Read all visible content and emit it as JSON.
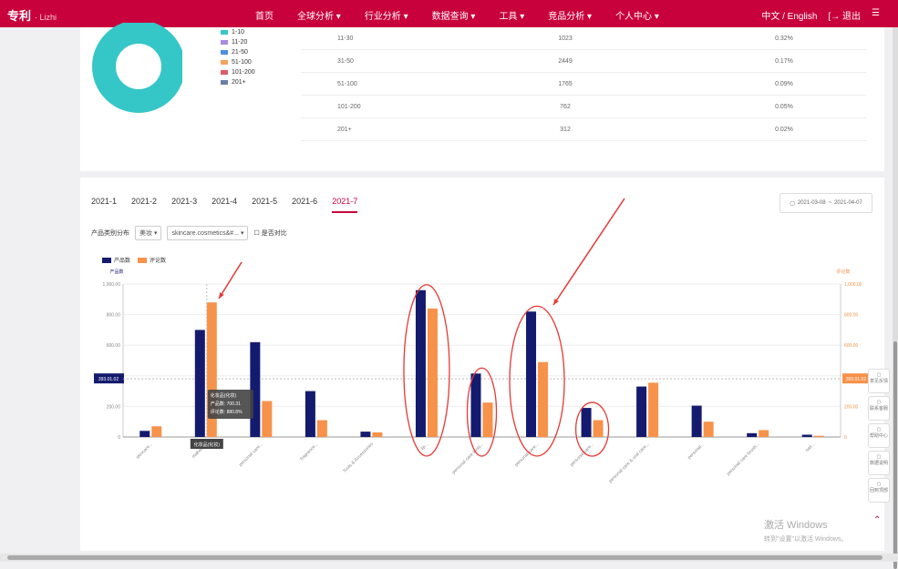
{
  "topbar": {
    "logo": "专利",
    "logo_sub": "· Lizhi",
    "nav": [
      "首页",
      "全球分析 ▾",
      "行业分析 ▾",
      "数据查询 ▾",
      "工具 ▾",
      "竞品分析 ▾",
      "个人中心 ▾"
    ],
    "lang": "中文 / English",
    "logout": "[→ 退出",
    "menu_icon": "menu-icon"
  },
  "range_legend": [
    {
      "label": "1-10",
      "color": "#35c6c8"
    },
    {
      "label": "11-20",
      "color": "#a98be0"
    },
    {
      "label": "21-50",
      "color": "#4a90e2"
    },
    {
      "label": "51-100",
      "color": "#f5a25d"
    },
    {
      "label": "101-200",
      "color": "#e05a6a"
    },
    {
      "label": "201+",
      "color": "#6a7fa8"
    }
  ],
  "range_table": [
    {
      "range": "11-30",
      "count": "1023",
      "pct": "0.32%"
    },
    {
      "range": "31-50",
      "count": "2449",
      "pct": "0.17%"
    },
    {
      "range": "51-100",
      "count": "1765",
      "pct": "0.09%"
    },
    {
      "range": "101-200",
      "count": "762",
      "pct": "0.05%"
    },
    {
      "range": "201+",
      "count": "312",
      "pct": "0.02%"
    }
  ],
  "tabs": [
    "2021-1",
    "2021-2",
    "2021-3",
    "2021-4",
    "2021-5",
    "2021-6",
    "2021-7"
  ],
  "active_tab": "2021-7",
  "date_range": {
    "start": "2021-03-08",
    "sep": "~",
    "end": "2021-04-07"
  },
  "filters": {
    "label": "产品类别分布",
    "select1": "美妆",
    "select2": "skincare.cosmetics&#...",
    "checkbox": "是否对比"
  },
  "chart_data": {
    "type": "bar",
    "legend": [
      "产品数",
      "评论数"
    ],
    "colors": {
      "产品数": "#141b6e",
      "评论数": "#f7924a"
    },
    "ylabel_left": "产品数",
    "ylabel_right": "评论数",
    "yticks_left": [
      "1,000.00",
      "800.00",
      "600.00",
      "400.00",
      "200.00",
      "0"
    ],
    "yticks_right": [
      "1,000.00",
      "800.00",
      "600.00",
      "400.00",
      "200.00",
      "0"
    ],
    "ylim": [
      0,
      1000
    ],
    "highlight_left": "393.01.02",
    "highlight_right": "393.01.02",
    "categories": [
      "skincare...",
      "makeup...",
      "personal care...",
      "fragrance...",
      "Tools & Accessories",
      "lip...",
      "personal care tools...",
      "personal care...",
      "personal care...",
      "personal care & oral care...",
      "personal...",
      "personal care brush...",
      "nail..."
    ],
    "series": [
      {
        "name": "产品数",
        "values": [
          40,
          700,
          620,
          300,
          35,
          960,
          415,
          820,
          190,
          330,
          205,
          25,
          15
        ]
      },
      {
        "name": "评论数",
        "values": [
          70,
          880,
          235,
          110,
          30,
          840,
          225,
          490,
          110,
          355,
          100,
          45,
          8
        ]
      }
    ],
    "tooltip": {
      "title": "化妆品(化妆)",
      "line1": "产品数: 700.31",
      "line2": "评论数: 880.8%"
    },
    "xaxis_tag": "化妆品(化妆)",
    "grid": true
  },
  "side_tools": [
    "意见反馈",
    "联系客服",
    "帮助中心",
    "数据说明",
    "回到顶部"
  ],
  "totop_icon": "chevron-up-icon",
  "watermark": {
    "line1": "激活 Windows",
    "line2": "转到\"设置\"以激活 Windows。"
  }
}
